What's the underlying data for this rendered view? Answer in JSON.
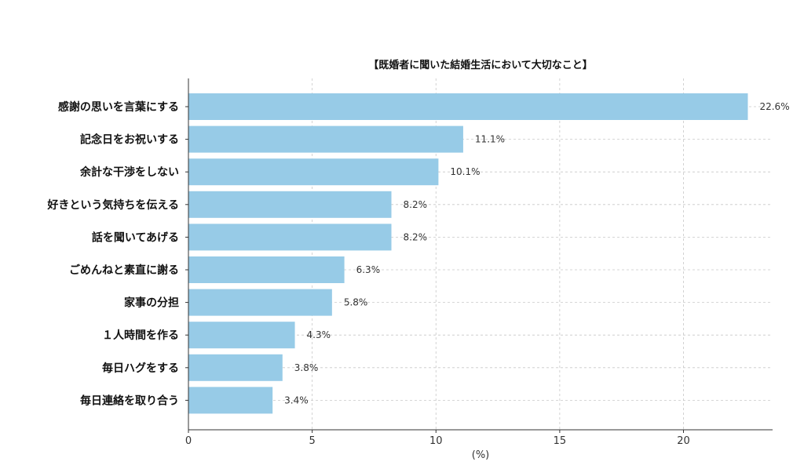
{
  "chart_data": {
    "type": "bar",
    "orientation": "horizontal",
    "title": "【既婚者に聞いた結婚生活において大切なこと】",
    "xlabel": "(%)",
    "ylabel": "",
    "xlim": [
      0,
      23.6
    ],
    "xticks": [
      0,
      5,
      10,
      15,
      20
    ],
    "grid": true,
    "bar_color": "#97cbe7",
    "categories": [
      "感謝の思いを言葉にする",
      "記念日をお祝いする",
      "余計な干渉をしない",
      "好きという気持ちを伝える",
      "話を聞いてあげる",
      "ごめんねと素直に謝る",
      "家事の分担",
      "１人時間を作る",
      "毎日ハグをする",
      "毎日連絡を取り合う"
    ],
    "values": [
      22.6,
      11.1,
      10.1,
      8.2,
      8.2,
      6.3,
      5.8,
      4.3,
      3.8,
      3.4
    ],
    "value_labels": [
      "22.6%",
      "11.1%",
      "10.1%",
      "8.2%",
      "8.2%",
      "6.3%",
      "5.8%",
      "4.3%",
      "3.8%",
      "3.4%"
    ]
  }
}
